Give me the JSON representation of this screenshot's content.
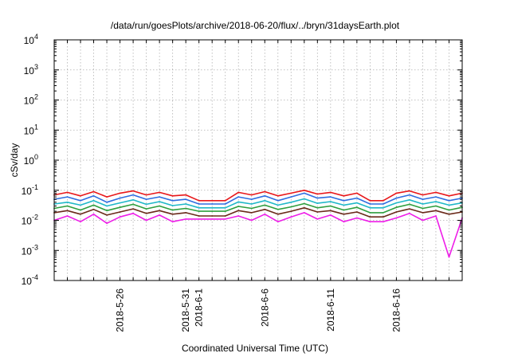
{
  "chart_data": {
    "type": "line",
    "title": "/data/run/goesPlots/archive/2018-06-20/flux/../bryn/31daysEarth.plot",
    "xlabel": "Coordinated Universal Time (UTC)",
    "ylabel": "cSv/day",
    "yscale": "log",
    "ylim": [
      0.0001,
      10000
    ],
    "xlim": [
      "2018-05-21",
      "2018-06-21"
    ],
    "grid": true,
    "legend": "none",
    "x_ticks": [
      {
        "date": "2018-05-26",
        "label": "2018-5-26"
      },
      {
        "date": "2018-05-31",
        "label": "2018-5-31"
      },
      {
        "date": "2018-06-01",
        "label": "2018-6-1"
      },
      {
        "date": "2018-06-06",
        "label": "2018-6-6"
      },
      {
        "date": "2018-06-11",
        "label": "2018-6-11"
      },
      {
        "date": "2018-06-16",
        "label": "2018-6-16"
      }
    ],
    "y_ticks": [
      {
        "value": 0.0001,
        "base": "10",
        "exp": "-4"
      },
      {
        "value": 0.001,
        "base": "10",
        "exp": "-3"
      },
      {
        "value": 0.01,
        "base": "10",
        "exp": "-2"
      },
      {
        "value": 0.1,
        "base": "10",
        "exp": "-1"
      },
      {
        "value": 1,
        "base": "10",
        "exp": "0"
      },
      {
        "value": 10,
        "base": "10",
        "exp": "1"
      },
      {
        "value": 100,
        "base": "10",
        "exp": "2"
      },
      {
        "value": 1000,
        "base": "10",
        "exp": "3"
      },
      {
        "value": 10000,
        "base": "10",
        "exp": "4"
      }
    ],
    "series": [
      {
        "color": "#e8171a",
        "x": [
          "2018-05-21",
          "2018-05-22",
          "2018-05-23",
          "2018-05-24",
          "2018-05-25",
          "2018-05-26",
          "2018-05-27",
          "2018-05-28",
          "2018-05-29",
          "2018-05-30",
          "2018-05-31",
          "2018-06-01",
          "2018-06-02",
          "2018-06-03",
          "2018-06-04",
          "2018-06-05",
          "2018-06-06",
          "2018-06-07",
          "2018-06-08",
          "2018-06-09",
          "2018-06-10",
          "2018-06-11",
          "2018-06-12",
          "2018-06-13",
          "2018-06-14",
          "2018-06-15",
          "2018-06-16",
          "2018-06-17",
          "2018-06-18",
          "2018-06-19",
          "2018-06-20",
          "2018-06-21"
        ],
        "values": [
          0.07,
          0.085,
          0.065,
          0.09,
          0.06,
          0.08,
          0.095,
          0.07,
          0.085,
          0.065,
          0.07,
          0.045,
          0.045,
          0.045,
          0.085,
          0.07,
          0.09,
          0.065,
          0.08,
          0.1,
          0.075,
          0.085,
          0.065,
          0.08,
          0.045,
          0.045,
          0.08,
          0.095,
          0.07,
          0.085,
          0.065,
          0.08
        ]
      },
      {
        "color": "#2f6ee0",
        "x": [
          "2018-05-21",
          "2018-05-22",
          "2018-05-23",
          "2018-05-24",
          "2018-05-25",
          "2018-05-26",
          "2018-05-27",
          "2018-05-28",
          "2018-05-29",
          "2018-05-30",
          "2018-05-31",
          "2018-06-01",
          "2018-06-02",
          "2018-06-03",
          "2018-06-04",
          "2018-06-05",
          "2018-06-06",
          "2018-06-07",
          "2018-06-08",
          "2018-06-09",
          "2018-06-10",
          "2018-06-11",
          "2018-06-12",
          "2018-06-13",
          "2018-06-14",
          "2018-06-15",
          "2018-06-16",
          "2018-06-17",
          "2018-06-18",
          "2018-06-19",
          "2018-06-20",
          "2018-06-21"
        ],
        "values": [
          0.05,
          0.06,
          0.045,
          0.065,
          0.04,
          0.055,
          0.07,
          0.05,
          0.06,
          0.045,
          0.05,
          0.035,
          0.035,
          0.035,
          0.06,
          0.05,
          0.065,
          0.045,
          0.06,
          0.08,
          0.055,
          0.06,
          0.045,
          0.055,
          0.035,
          0.035,
          0.055,
          0.07,
          0.05,
          0.06,
          0.045,
          0.055
        ]
      },
      {
        "color": "#20b8c8",
        "x": [
          "2018-05-21",
          "2018-05-22",
          "2018-05-23",
          "2018-05-24",
          "2018-05-25",
          "2018-05-26",
          "2018-05-27",
          "2018-05-28",
          "2018-05-29",
          "2018-05-30",
          "2018-05-31",
          "2018-06-01",
          "2018-06-02",
          "2018-06-03",
          "2018-06-04",
          "2018-06-05",
          "2018-06-06",
          "2018-06-07",
          "2018-06-08",
          "2018-06-09",
          "2018-06-10",
          "2018-06-11",
          "2018-06-12",
          "2018-06-13",
          "2018-06-14",
          "2018-06-15",
          "2018-06-16",
          "2018-06-17",
          "2018-06-18",
          "2018-06-19",
          "2018-06-20",
          "2018-06-21"
        ],
        "values": [
          0.035,
          0.04,
          0.032,
          0.045,
          0.03,
          0.038,
          0.048,
          0.034,
          0.042,
          0.031,
          0.035,
          0.026,
          0.026,
          0.026,
          0.041,
          0.035,
          0.045,
          0.032,
          0.04,
          0.052,
          0.037,
          0.042,
          0.032,
          0.038,
          0.026,
          0.026,
          0.038,
          0.048,
          0.035,
          0.042,
          0.032,
          0.038
        ]
      },
      {
        "color": "#2e9e3e",
        "x": [
          "2018-05-21",
          "2018-05-22",
          "2018-05-23",
          "2018-05-24",
          "2018-05-25",
          "2018-05-26",
          "2018-05-27",
          "2018-05-28",
          "2018-05-29",
          "2018-05-30",
          "2018-05-31",
          "2018-06-01",
          "2018-06-02",
          "2018-06-03",
          "2018-06-04",
          "2018-06-05",
          "2018-06-06",
          "2018-06-07",
          "2018-06-08",
          "2018-06-09",
          "2018-06-10",
          "2018-06-11",
          "2018-06-12",
          "2018-06-13",
          "2018-06-14",
          "2018-06-15",
          "2018-06-16",
          "2018-06-17",
          "2018-06-18",
          "2018-06-19",
          "2018-06-20",
          "2018-06-21"
        ],
        "values": [
          0.025,
          0.03,
          0.022,
          0.032,
          0.021,
          0.027,
          0.034,
          0.024,
          0.03,
          0.022,
          0.025,
          0.02,
          0.02,
          0.02,
          0.029,
          0.025,
          0.032,
          0.023,
          0.028,
          0.036,
          0.026,
          0.03,
          0.022,
          0.027,
          0.018,
          0.018,
          0.027,
          0.034,
          0.025,
          0.03,
          0.022,
          0.027
        ]
      },
      {
        "color": "#6a2a1a",
        "x": [
          "2018-05-21",
          "2018-05-22",
          "2018-05-23",
          "2018-05-24",
          "2018-05-25",
          "2018-05-26",
          "2018-05-27",
          "2018-05-28",
          "2018-05-29",
          "2018-05-30",
          "2018-05-31",
          "2018-06-01",
          "2018-06-02",
          "2018-06-03",
          "2018-06-04",
          "2018-06-05",
          "2018-06-06",
          "2018-06-07",
          "2018-06-08",
          "2018-06-09",
          "2018-06-10",
          "2018-06-11",
          "2018-06-12",
          "2018-06-13",
          "2018-06-14",
          "2018-06-15",
          "2018-06-16",
          "2018-06-17",
          "2018-06-18",
          "2018-06-19",
          "2018-06-20",
          "2018-06-21"
        ],
        "values": [
          0.018,
          0.021,
          0.016,
          0.023,
          0.015,
          0.019,
          0.024,
          0.017,
          0.021,
          0.016,
          0.018,
          0.014,
          0.014,
          0.014,
          0.021,
          0.018,
          0.023,
          0.016,
          0.02,
          0.026,
          0.019,
          0.021,
          0.016,
          0.019,
          0.013,
          0.013,
          0.019,
          0.024,
          0.018,
          0.021,
          0.016,
          0.019
        ]
      },
      {
        "color": "#ee1ee8",
        "x": [
          "2018-05-21",
          "2018-05-22",
          "2018-05-23",
          "2018-05-24",
          "2018-05-25",
          "2018-05-26",
          "2018-05-27",
          "2018-05-28",
          "2018-05-29",
          "2018-05-30",
          "2018-05-31",
          "2018-06-01",
          "2018-06-02",
          "2018-06-03",
          "2018-06-04",
          "2018-06-05",
          "2018-06-06",
          "2018-06-07",
          "2018-06-08",
          "2018-06-09",
          "2018-06-10",
          "2018-06-11",
          "2018-06-12",
          "2018-06-13",
          "2018-06-14",
          "2018-06-15",
          "2018-06-16",
          "2018-06-17",
          "2018-06-18",
          "2018-06-19",
          "2018-06-20",
          "2018-06-21"
        ],
        "values": [
          0.01,
          0.014,
          0.009,
          0.016,
          0.008,
          0.013,
          0.017,
          0.01,
          0.015,
          0.009,
          0.011,
          0.011,
          0.011,
          0.011,
          0.014,
          0.01,
          0.016,
          0.009,
          0.013,
          0.018,
          0.011,
          0.015,
          0.009,
          0.012,
          0.009,
          0.009,
          0.012,
          0.017,
          0.01,
          0.014,
          0.0006,
          0.012
        ]
      }
    ]
  }
}
